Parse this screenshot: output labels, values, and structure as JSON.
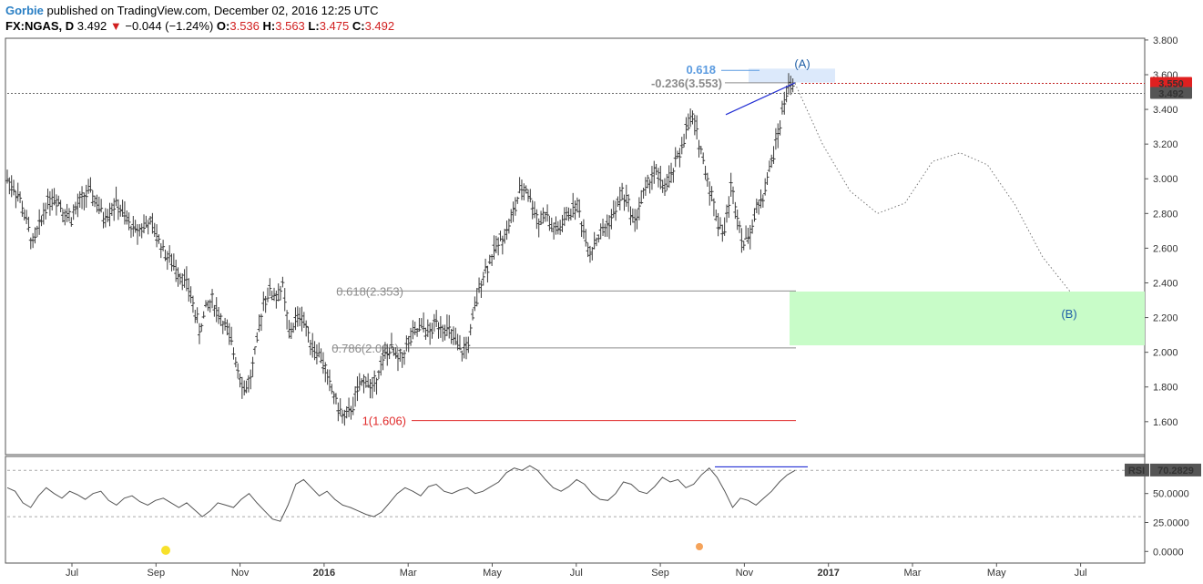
{
  "header": {
    "author": "Gorbie",
    "published": "published on TradingView.com, December 02, 2016 12:25 UTC",
    "symbol": "FX:NGAS, D",
    "last": "3.492",
    "change_arrow": "▼",
    "change": "−0.044 (−1.24%)",
    "o_label": "O:",
    "o": "3.536",
    "h_label": "H:",
    "h": "3.563",
    "l_label": "L:",
    "l": "3.475",
    "c_label": "C:",
    "c": "3.492"
  },
  "colors": {
    "bars": "#3a3a3a",
    "up_arrow": "#d11f1f",
    "fib_line": "#8c8c8c",
    "fib_1_line": "#e02b2b",
    "target_zone": "#c8fcc8",
    "trend_line": "#2430d4",
    "top_zone": "#dce9fb",
    "price_line": "#c11e1e",
    "wave_label": "#1f5fa6",
    "rsi_line": "#555555",
    "rsi_level": "#aaaaaa",
    "rsi_trend": "#2430d4",
    "marker_yellow": "#f7e12b",
    "marker_orange": "#f5a35a"
  },
  "chart_data": {
    "type": "line",
    "price_axis": {
      "ticks": [
        "3.800",
        "3.600",
        "3.400",
        "3.200",
        "3.000",
        "2.800",
        "2.600",
        "2.400",
        "2.200",
        "2.000",
        "1.800",
        "1.600"
      ],
      "ylim": [
        1.41,
        3.81
      ]
    },
    "x_ticks": [
      {
        "label": "Jul",
        "year": false
      },
      {
        "label": "Sep",
        "year": false
      },
      {
        "label": "Nov",
        "year": false
      },
      {
        "label": "2016",
        "year": true
      },
      {
        "label": "Mar",
        "year": false
      },
      {
        "label": "May",
        "year": false
      },
      {
        "label": "Jul",
        "year": false
      },
      {
        "label": "Sep",
        "year": false
      },
      {
        "label": "Nov",
        "year": false
      },
      {
        "label": "2017",
        "year": true
      },
      {
        "label": "Mar",
        "year": false
      },
      {
        "label": "May",
        "year": false
      },
      {
        "label": "Jul",
        "year": false
      }
    ],
    "price_path_approx": [
      3.0,
      2.95,
      2.88,
      2.75,
      2.62,
      2.72,
      2.85,
      2.9,
      2.88,
      2.8,
      2.78,
      2.84,
      2.9,
      2.92,
      2.86,
      2.78,
      2.82,
      2.86,
      2.8,
      2.74,
      2.7,
      2.72,
      2.75,
      2.7,
      2.62,
      2.55,
      2.5,
      2.45,
      2.4,
      2.28,
      2.12,
      2.25,
      2.3,
      2.22,
      2.15,
      2.05,
      1.92,
      1.78,
      1.85,
      2.05,
      2.3,
      2.35,
      2.32,
      2.38,
      2.1,
      2.18,
      2.22,
      2.1,
      2.02,
      1.98,
      1.85,
      1.75,
      1.65,
      1.62,
      1.7,
      1.8,
      1.85,
      1.78,
      1.9,
      1.98,
      2.02,
      1.95,
      2.0,
      2.08,
      2.12,
      2.15,
      2.1,
      2.18,
      2.15,
      2.12,
      2.05,
      2.0,
      2.05,
      2.25,
      2.42,
      2.5,
      2.58,
      2.65,
      2.7,
      2.8,
      2.92,
      2.95,
      2.85,
      2.75,
      2.8,
      2.72,
      2.7,
      2.76,
      2.82,
      2.85,
      2.7,
      2.58,
      2.65,
      2.7,
      2.75,
      2.82,
      2.92,
      2.85,
      2.75,
      2.88,
      2.96,
      3.05,
      2.98,
      2.95,
      3.05,
      3.15,
      3.28,
      3.35,
      3.22,
      3.05,
      2.9,
      2.75,
      2.7,
      2.95,
      2.8,
      2.62,
      2.7,
      2.82,
      2.9,
      3.05,
      3.2,
      3.38,
      3.55,
      3.49
    ],
    "price_last": 3.492,
    "fib_levels": [
      {
        "label": "0.618(2.353)",
        "value": 2.353,
        "color": "#8c8c8c"
      },
      {
        "label": "0.786(2.025)",
        "value": 2.025,
        "color": "#8c8c8c"
      },
      {
        "label": "1(1.606)",
        "value": 1.606,
        "color": "#e02b2b"
      }
    ],
    "upper_fib": [
      {
        "label": "0.618",
        "value": 3.625,
        "color": "#5b9be0"
      },
      {
        "label": "-0.236(3.553)",
        "value": 3.553,
        "color": "#8c8c8c"
      }
    ],
    "target_zone": {
      "from": 2.04,
      "to": 2.35
    },
    "wave_labels": [
      {
        "label": "(A)",
        "value": 3.66
      },
      {
        "label": "(B)",
        "value": 2.22
      }
    ],
    "projection_path": [
      3.55,
      3.2,
      2.93,
      2.8,
      2.86,
      3.1,
      3.15,
      3.08,
      2.85,
      2.55,
      2.35
    ],
    "price_tags": [
      {
        "label": "3.550",
        "value": 3.55
      },
      {
        "label": "3.492",
        "value": 3.492
      }
    ]
  },
  "rsi": {
    "title": "RSI",
    "current": "70.2829",
    "axis_ticks": [
      "50.0000",
      "25.0000",
      "0.0000"
    ],
    "levels": [
      70,
      30
    ],
    "ylim": [
      -10,
      82
    ],
    "values_approx": [
      55,
      52,
      42,
      38,
      48,
      55,
      50,
      46,
      52,
      49,
      45,
      50,
      52,
      44,
      40,
      46,
      48,
      43,
      40,
      44,
      46,
      42,
      38,
      42,
      36,
      30,
      35,
      42,
      40,
      38,
      45,
      50,
      42,
      35,
      28,
      26,
      40,
      58,
      62,
      55,
      48,
      52,
      45,
      40,
      38,
      35,
      32,
      30,
      34,
      42,
      50,
      55,
      52,
      48,
      56,
      58,
      52,
      50,
      53,
      55,
      50,
      52,
      56,
      60,
      68,
      72,
      70,
      74,
      70,
      62,
      55,
      52,
      56,
      62,
      58,
      50,
      45,
      44,
      50,
      60,
      58,
      52,
      50,
      56,
      64,
      60,
      62,
      55,
      58,
      66,
      72,
      64,
      52,
      38,
      46,
      44,
      40,
      46,
      52,
      60,
      66,
      70
    ]
  }
}
